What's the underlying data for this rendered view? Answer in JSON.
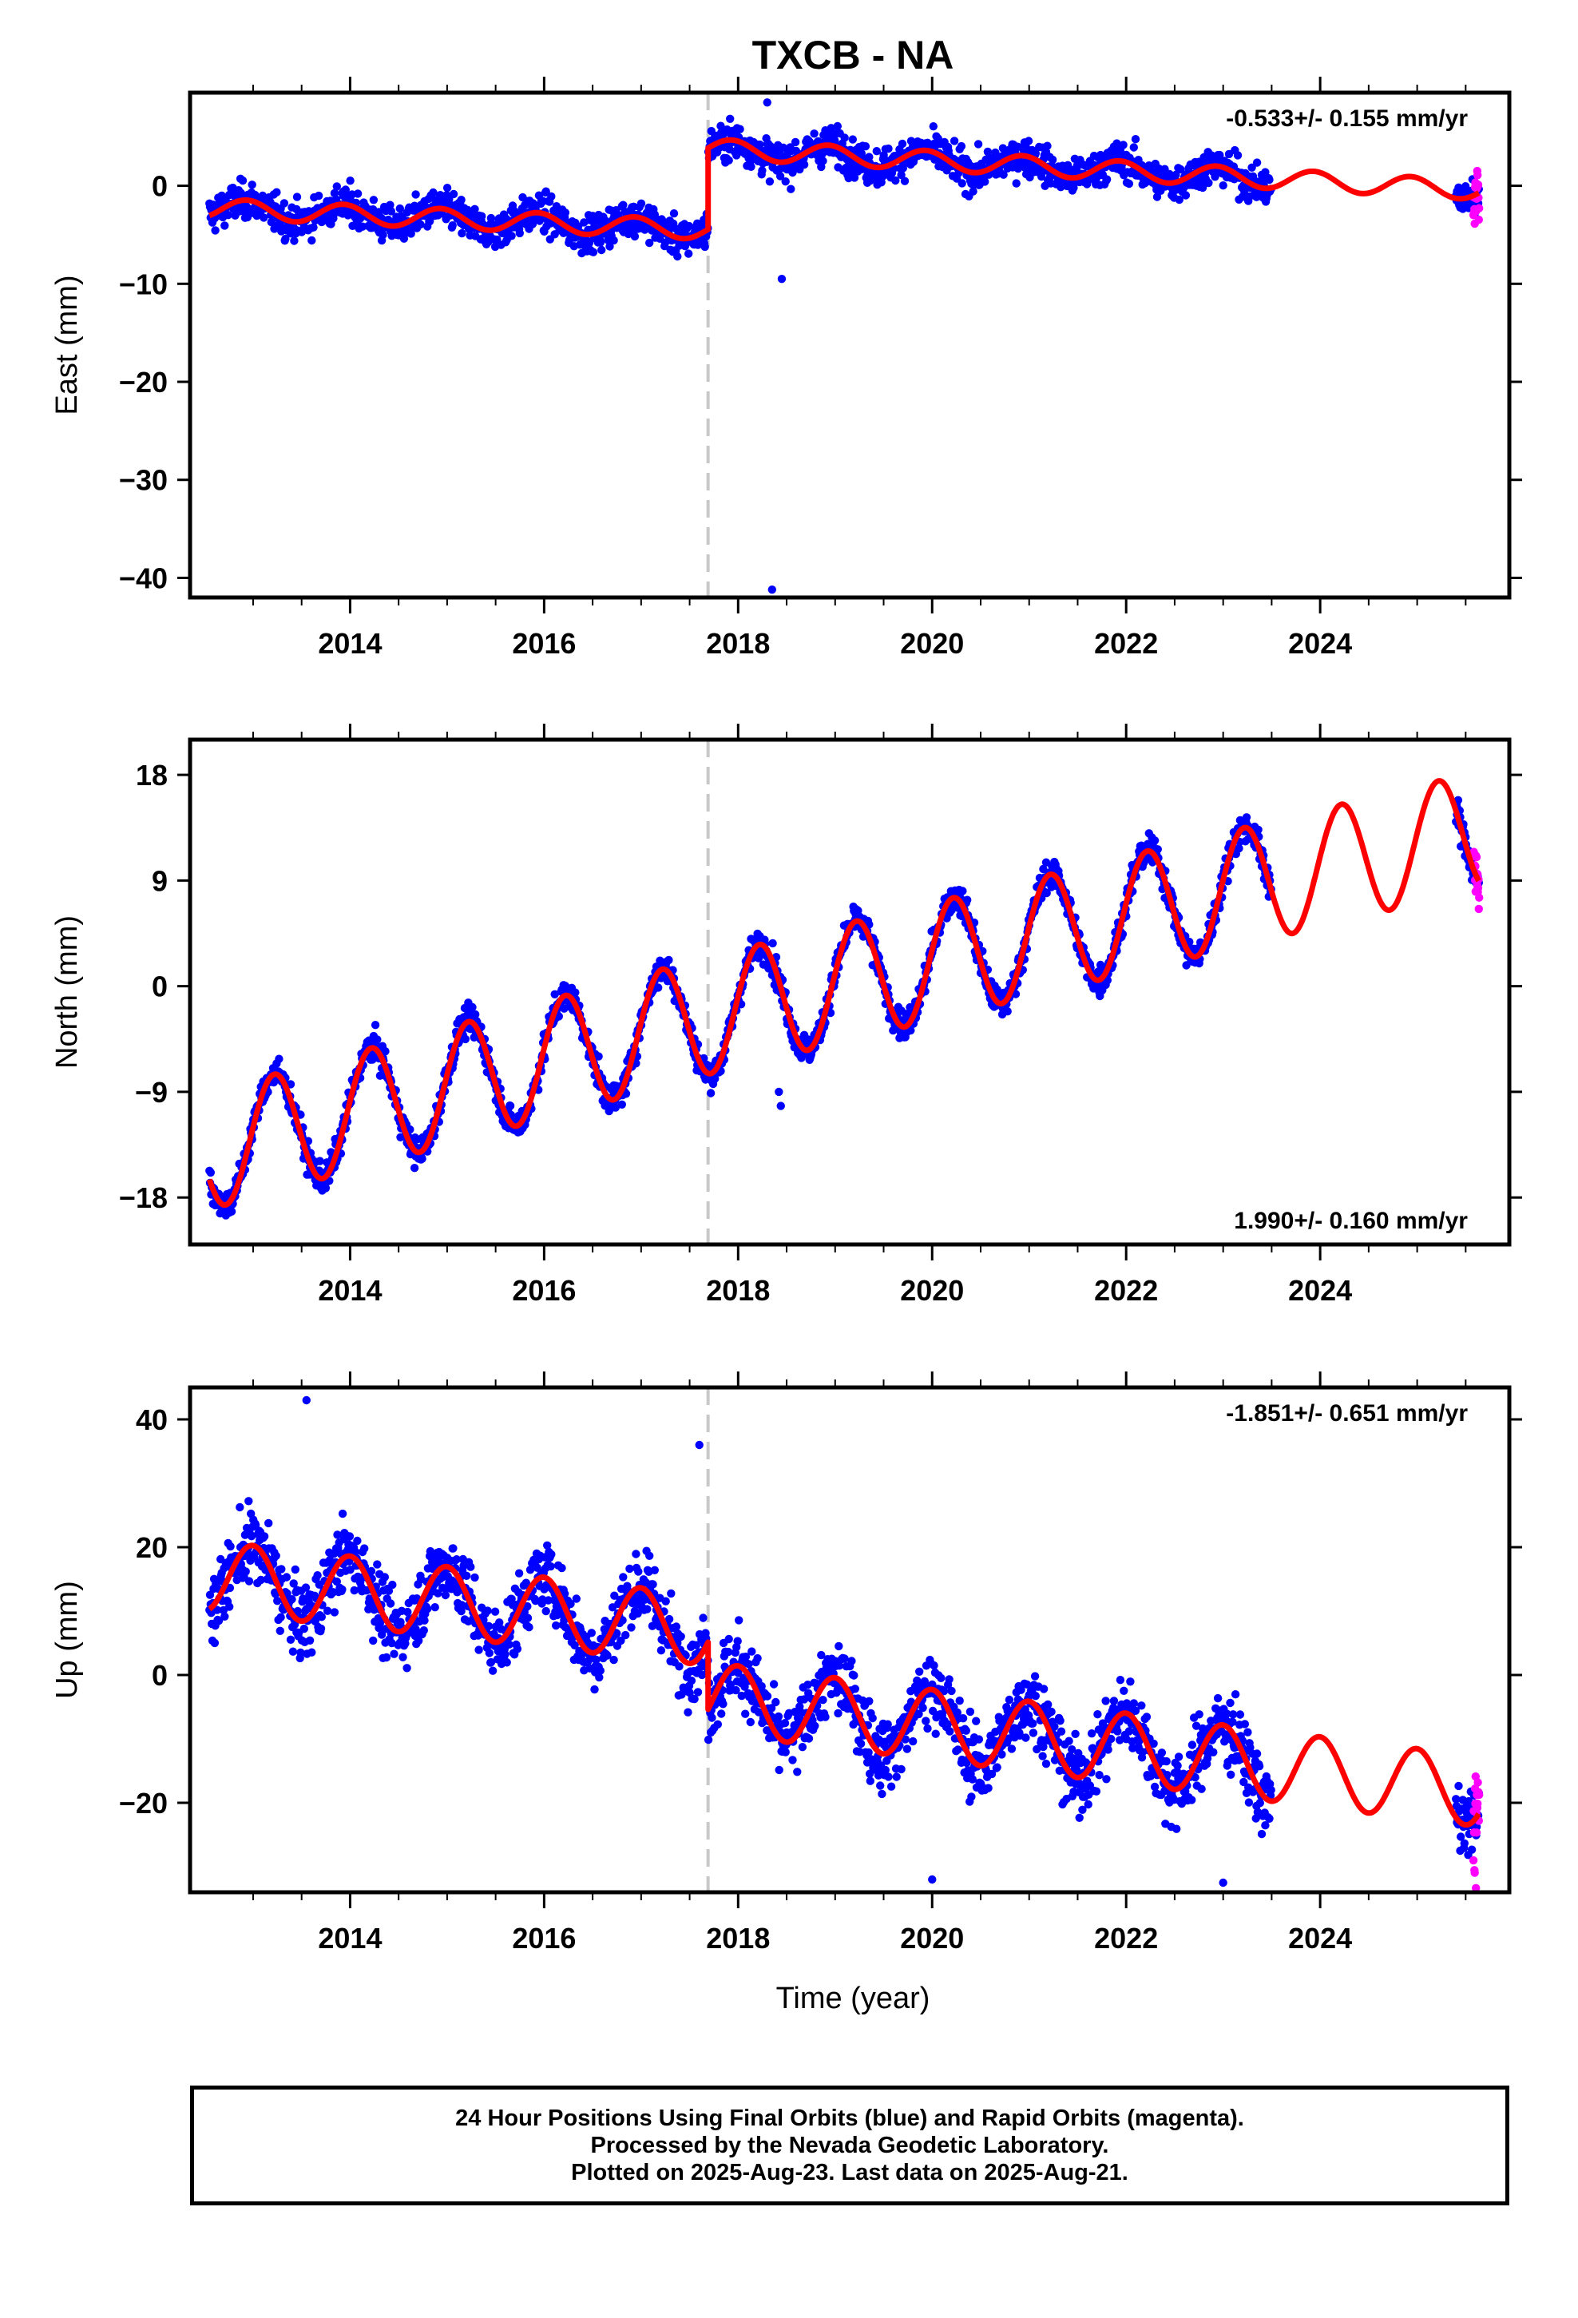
{
  "title": "TXCB - NA",
  "xlabel": "Time (year)",
  "footer": {
    "line1": "24 Hour Positions Using Final Orbits (blue) and Rapid Orbits (magenta).",
    "line2": "Processed by the Nevada Geodetic Laboratory.",
    "line3": "Plotted on 2025-Aug-23. Last data on 2025-Aug-21."
  },
  "colors": {
    "final": "#0000ff",
    "rapid": "#ff00ff",
    "model": "#ff0000",
    "offset_line": "#c8c8c8",
    "frame": "#000000"
  },
  "chart_data": [
    {
      "type": "scatter",
      "name": "east",
      "ylabel": "East (mm)",
      "rate_label": "-0.533+/- 0.155 mm/yr",
      "rate_position": "top-right",
      "xlim": [
        2012.35,
        2025.95
      ],
      "ylim": [
        -42,
        9.5
      ],
      "yticks": [
        0,
        -10,
        -20,
        -30,
        -40
      ],
      "ytick_labels": [
        "0",
        "−10",
        "−20",
        "−30",
        "−40"
      ],
      "xticks": [
        2014,
        2016,
        2018,
        2020,
        2022,
        2024
      ],
      "xtick_labels": [
        "2014",
        "2016",
        "2018",
        "2020",
        "2022",
        "2024"
      ],
      "offset_epoch": 2017.69,
      "final_orbits_end": 2023.5,
      "rapid_orbits_range": [
        2025.4,
        2025.64
      ],
      "model": {
        "pre_offset": {
          "start": -2.3,
          "end": -4.5
        },
        "post_offset": {
          "start": 3.8,
          "rate": -0.533
        },
        "amplitude": 1.0,
        "phase": 2.0
      },
      "noise_sd": 1.3,
      "outliers": [
        [
          2018.35,
          -41.2
        ],
        [
          2018.45,
          -9.5
        ],
        [
          2018.3,
          8.5
        ]
      ]
    },
    {
      "type": "scatter",
      "name": "north",
      "ylabel": "North (mm)",
      "rate_label": "1.990+/- 0.160 mm/yr",
      "rate_position": "bottom-right",
      "xlim": [
        2012.35,
        2025.95
      ],
      "ylim": [
        -22,
        21
      ],
      "yticks": [
        18,
        9,
        0,
        -9,
        -18
      ],
      "ytick_labels": [
        "18",
        "9",
        "0",
        "−9",
        "−18"
      ],
      "xticks": [
        2014,
        2016,
        2018,
        2020,
        2022,
        2024
      ],
      "xtick_labels": [
        "2014",
        "2016",
        "2018",
        "2020",
        "2022",
        "2024"
      ],
      "offset_epoch": 2017.69,
      "final_orbits_end": 2023.5,
      "rapid_orbits_range": [
        2025.4,
        2025.64
      ],
      "model": {
        "pre_offset": {
          "start": -14,
          "end": -2.5
        },
        "post_offset": {
          "start": -2.5,
          "rate": 1.99
        },
        "amplitude": 5.0,
        "phase": 0.2
      },
      "noise_sd": 0.9,
      "outliers": [
        [
          2018.42,
          -9.0
        ],
        [
          2018.44,
          -10.2
        ]
      ]
    },
    {
      "type": "scatter",
      "name": "up",
      "ylabel": "Up (mm)",
      "rate_label": "-1.851+/- 0.651 mm/yr",
      "rate_position": "top-right",
      "xlim": [
        2012.35,
        2025.95
      ],
      "ylim": [
        -34,
        45
      ],
      "yticks": [
        40,
        20,
        0,
        -20
      ],
      "ytick_labels": [
        "40",
        "20",
        "0",
        "−20"
      ],
      "xticks": [
        2014,
        2016,
        2018,
        2020,
        2022,
        2024
      ],
      "xtick_labels": [
        "2014",
        "2016",
        "2018",
        "2020",
        "2022",
        "2024"
      ],
      "offset_epoch": 2017.69,
      "final_orbits_end": 2023.5,
      "rapid_orbits_range": [
        2025.4,
        2025.64
      ],
      "model": {
        "pre_offset": {
          "start": 15.5,
          "end": 7
        },
        "post_offset": {
          "start": -3.5,
          "rate": -1.851
        },
        "amplitude": 5.5,
        "phase": 1.6
      },
      "noise_sd": 4.0,
      "outliers": [
        [
          2013.55,
          43
        ],
        [
          2017.6,
          36
        ],
        [
          2020.0,
          -32
        ],
        [
          2023.0,
          -32.5
        ]
      ]
    }
  ]
}
